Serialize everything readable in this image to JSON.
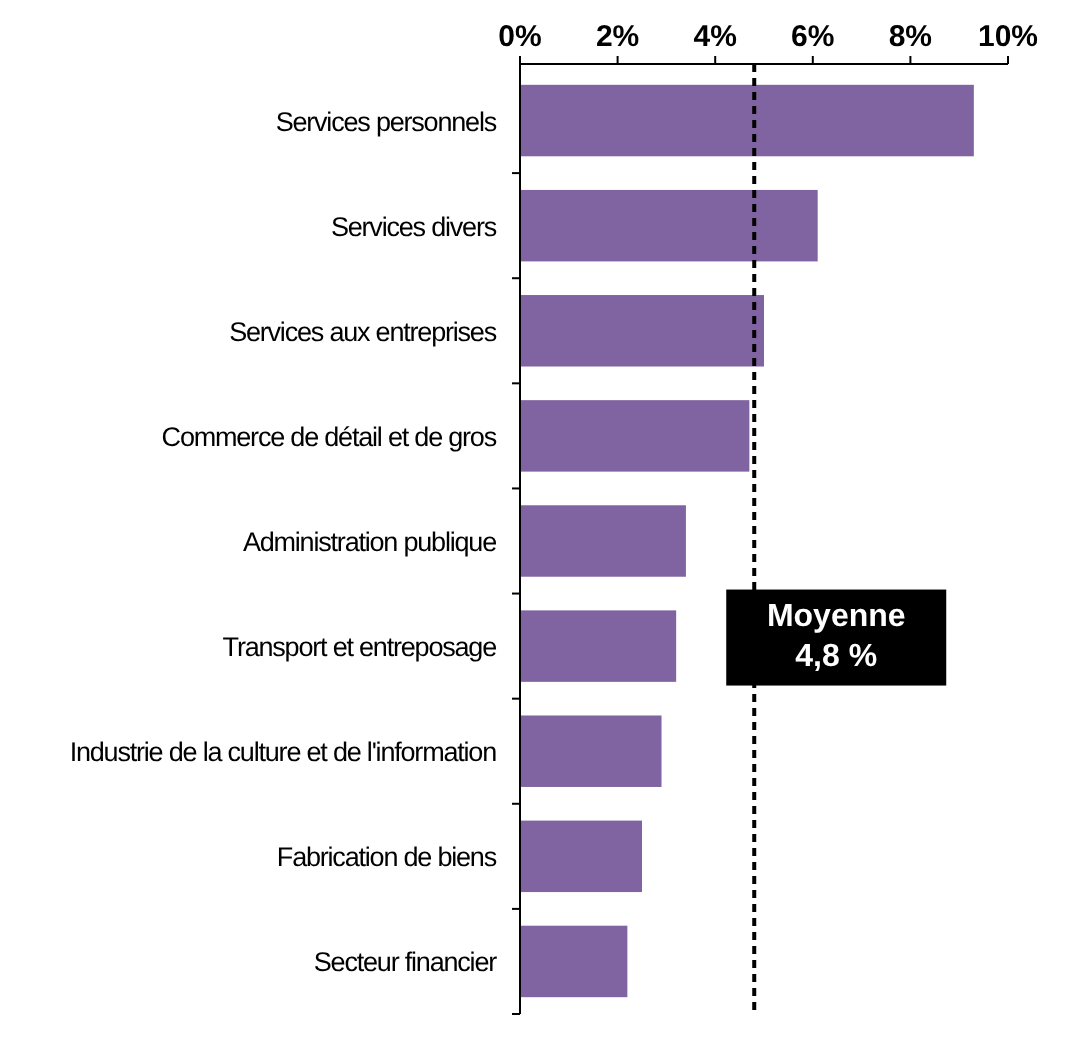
{
  "chart_data": {
    "type": "bar",
    "orientation": "horizontal",
    "categories": [
      "Services personnels",
      "Services divers",
      "Services aux entreprises",
      "Commerce de détail et de gros",
      "Administration publique",
      "Transport et entreposage",
      "Industrie de la culture et de l'information",
      "Fabrication de biens",
      "Secteur financier"
    ],
    "values": [
      9.3,
      6.1,
      5.0,
      4.7,
      3.4,
      3.2,
      2.9,
      2.5,
      2.2
    ],
    "color": "#8064a2",
    "xlim": [
      0,
      10
    ],
    "xticks": [
      {
        "value": 0,
        "label": "0%"
      },
      {
        "value": 2,
        "label": "2%"
      },
      {
        "value": 4,
        "label": "4%"
      },
      {
        "value": 6,
        "label": "6%"
      },
      {
        "value": 8,
        "label": "8%"
      },
      {
        "value": 10,
        "label": "10%"
      }
    ],
    "grid": false,
    "ref_lines": [
      {
        "axis": "x",
        "value": 4.8,
        "label": "Moyenne\n4,8 %",
        "color": "#000000",
        "line_style": "dashed"
      }
    ]
  }
}
